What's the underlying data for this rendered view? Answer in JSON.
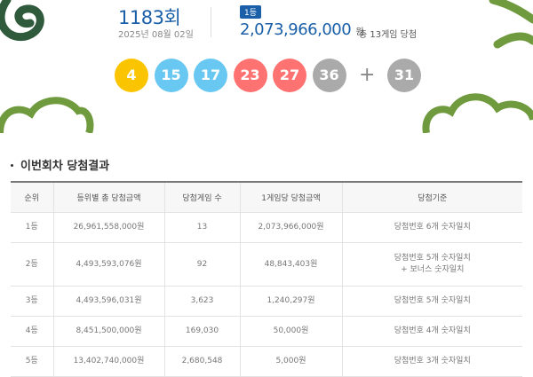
{
  "header": {
    "round": "1183",
    "round_unit": "회",
    "date": "2025년 08월 02일",
    "badge": "1등",
    "prize": "2,073,966,000",
    "prize_unit": "원",
    "winners": "총 13게임 당첨"
  },
  "balls": [
    {
      "number": 4,
      "color": "#fbc400"
    },
    {
      "number": 15,
      "color": "#69c8f2"
    },
    {
      "number": 17,
      "color": "#69c8f2"
    },
    {
      "number": 23,
      "color": "#ff7272"
    },
    {
      "number": 27,
      "color": "#ff7272"
    },
    {
      "number": 36,
      "color": "#aaaaaa"
    }
  ],
  "plus": "+",
  "bonus": {
    "number": 31,
    "color": "#aaaaaa"
  },
  "section_title": "이번회차 당첨결과",
  "table": {
    "columns": [
      "순위",
      "등위별 총 당첨금액",
      "당첨게임 수",
      "1게임당 당첨금액",
      "당첨기준"
    ],
    "rows": [
      [
        "1등",
        "26,961,558,000원",
        "13",
        "2,073,966,000원",
        [
          "당첨번호 6개 숫자일치"
        ]
      ],
      [
        "2등",
        "4,493,593,076원",
        "92",
        "48,843,403원",
        [
          "당첨번호 5개 숫자일치",
          "+ 보너스 숫자일치"
        ]
      ],
      [
        "3등",
        "4,493,596,031원",
        "3,623",
        "1,240,297원",
        [
          "당첨번호 5개 숫자일치"
        ]
      ],
      [
        "4등",
        "8,451,500,000원",
        "169,030",
        "50,000원",
        [
          "당첨번호 4개 숫자일치"
        ]
      ],
      [
        "5등",
        "13,402,740,000원",
        "2,680,548",
        "5,000원",
        [
          "당첨번호 3개 숫자일치"
        ]
      ]
    ]
  }
}
